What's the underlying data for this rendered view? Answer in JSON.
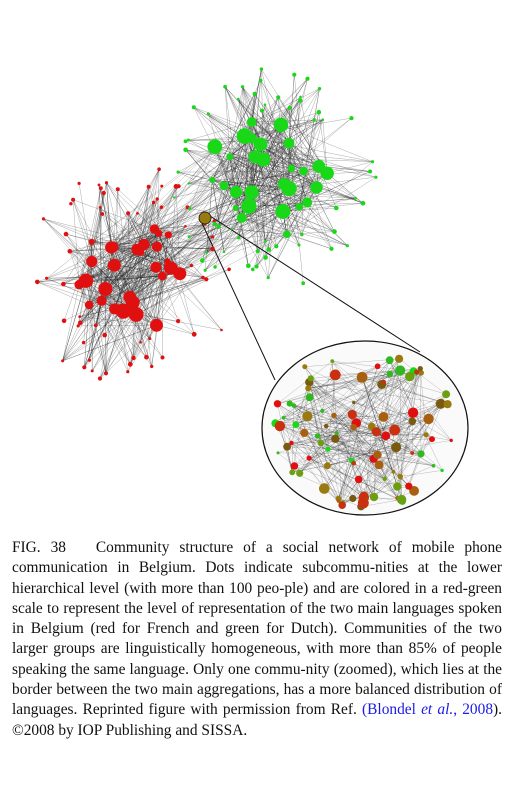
{
  "figure": {
    "colors": {
      "french": "#e01010",
      "dutch": "#18d818",
      "mixed": "#9a7a10",
      "edge": "#222222",
      "link": "#cc2222"
    }
  },
  "caption": {
    "label": "FIG. 38",
    "text_1": "Community structure of a social network of mobile phone communication in Belgium. Dots indicate subcommu-­nities at the lower hierarchical level (with more than 100 peo-­ple) and are colored in a red-green scale to represent the level of representation of the two main languages spoken in Belgium (red for French and green for Dutch). Communities of the two larger groups are linguistically homogeneous, with more than 85% of people speaking the same language. Only one commu-­nity (zoomed), which lies at the border between the two main aggregations, has a more balanced distribution of languages. Reprinted figure with permission from Ref. ",
    "ref_open": "(",
    "ref_author": "Blondel ",
    "ref_etal": "et al.",
    "ref_sep": ", ",
    "ref_year": "2008",
    "ref_close": ").",
    "copyright": " ©2008 by IOP Publishing and SISSA."
  }
}
